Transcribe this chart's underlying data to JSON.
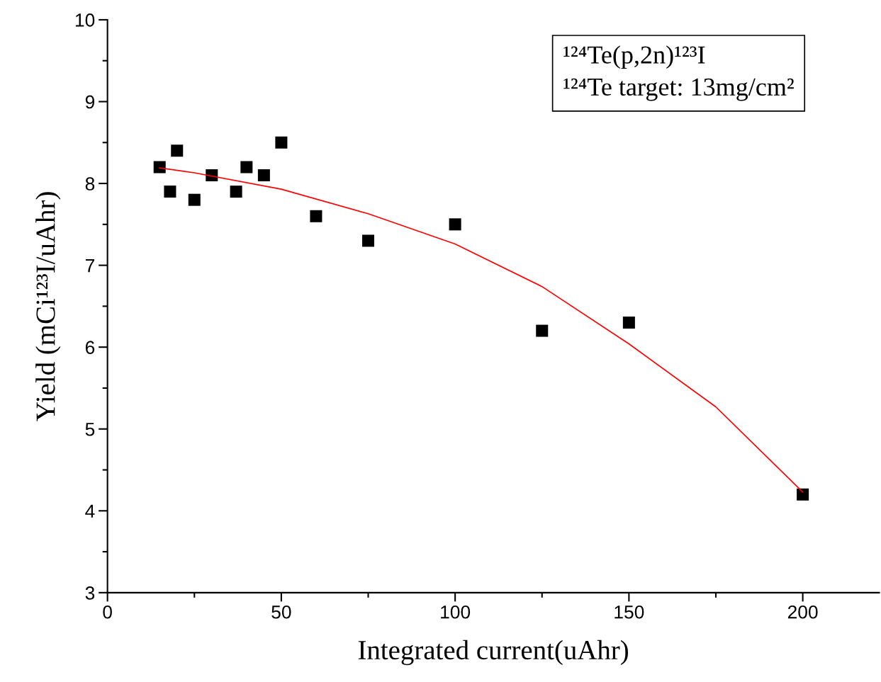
{
  "chart_data": {
    "type": "scatter",
    "xlabel": "Integrated current(uAhr)",
    "ylabel": "Yield (mCi¹²³I/uAhr)",
    "annotations": [
      "¹²⁴Te(p,2n)¹²³I",
      "¹²⁴Te target: 13mg/cm²"
    ],
    "xlim": [
      0,
      222
    ],
    "xticks": [
      0,
      50,
      100,
      150,
      200
    ],
    "ylim": [
      3,
      10
    ],
    "yticks": [
      3,
      4,
      5,
      6,
      7,
      8,
      9,
      10
    ],
    "grid": false,
    "legend": false,
    "series": [
      {
        "color": "#000000",
        "marker": "square",
        "x": [
          15,
          18,
          20,
          25,
          30,
          37,
          40,
          45,
          50,
          60,
          75,
          100,
          125,
          150,
          200
        ],
        "values": [
          8.2,
          7.9,
          8.4,
          7.8,
          8.1,
          7.9,
          8.2,
          8.1,
          8.5,
          7.6,
          7.3,
          7.5,
          6.2,
          6.3,
          4.2
        ]
      },
      {
        "type": "line",
        "color": "#ff0000",
        "marker": "none",
        "line_style": "solid",
        "x": [
          15,
          25,
          50,
          75,
          100,
          125,
          150,
          175,
          200
        ],
        "values": [
          8.19,
          8.13,
          7.93,
          7.63,
          7.26,
          6.74,
          6.04,
          5.27,
          4.23
        ]
      }
    ]
  }
}
